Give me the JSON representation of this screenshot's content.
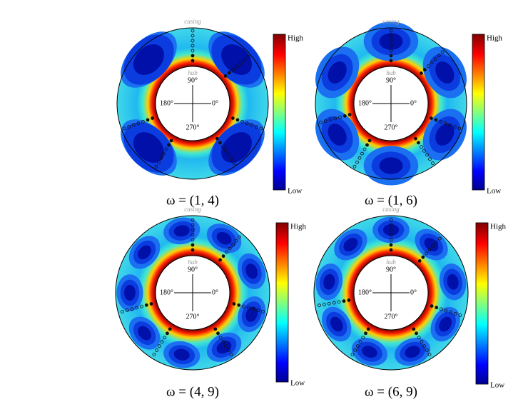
{
  "annotations": {
    "casing": "casing",
    "hub": "hub",
    "angle_top": "90°",
    "angle_left": "180°",
    "angle_right": "0°",
    "angle_bottom": "270°",
    "colorbar_high": "High",
    "colorbar_low": "Low"
  },
  "panels": [
    {
      "label": "ω = (1, 4)"
    },
    {
      "label": "ω = (1, 6)"
    },
    {
      "label": "ω = (4, 9)"
    },
    {
      "label": "ω = (6, 9)"
    }
  ]
}
